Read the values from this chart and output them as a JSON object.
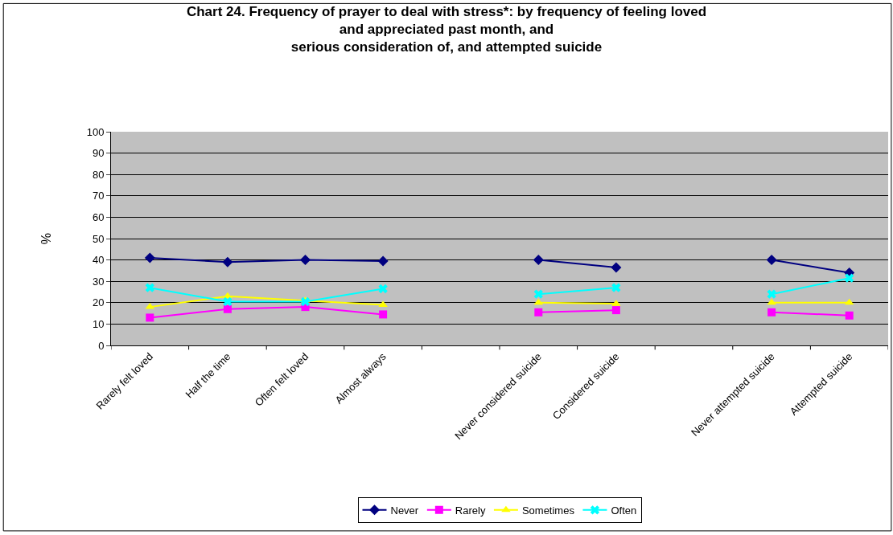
{
  "chart_data": {
    "type": "line",
    "title": "Chart 24. Frequency of prayer to deal with stress*: by frequency of feeling loved\nand appreciated past month, and\nserious consideration of, and attempted suicide",
    "ylabel": "%",
    "categories": [
      "Rarely felt loved",
      "Half the time",
      "Often felt loved",
      "Almost always",
      null,
      "Never considered suicide",
      "Considered suicide",
      null,
      "Never attempted suicide",
      "Attempted suicide"
    ],
    "series": [
      {
        "name": "Never",
        "color": "#000080",
        "marker": "diamond",
        "values": [
          41,
          39,
          40,
          39.5,
          null,
          40,
          36.5,
          null,
          40,
          34
        ]
      },
      {
        "name": "Rarely",
        "color": "#ff00ff",
        "marker": "square",
        "values": [
          13,
          17,
          18,
          14.5,
          null,
          15.5,
          16.5,
          null,
          15.5,
          14
        ]
      },
      {
        "name": "Sometimes",
        "color": "#ffff00",
        "marker": "triangle",
        "values": [
          18,
          23,
          21,
          19,
          null,
          20,
          19.5,
          null,
          20,
          20
        ]
      },
      {
        "name": "Often",
        "color": "#00ffff",
        "marker": "cross",
        "values": [
          27,
          20.5,
          20.5,
          26.5,
          null,
          24,
          27,
          null,
          24,
          31.5
        ]
      }
    ],
    "ylim": [
      0,
      100
    ],
    "yticks": [
      0,
      10,
      20,
      30,
      40,
      50,
      60,
      70,
      80,
      90,
      100
    ],
    "grid": "y",
    "legend": "bottom",
    "line_style": "solid"
  }
}
